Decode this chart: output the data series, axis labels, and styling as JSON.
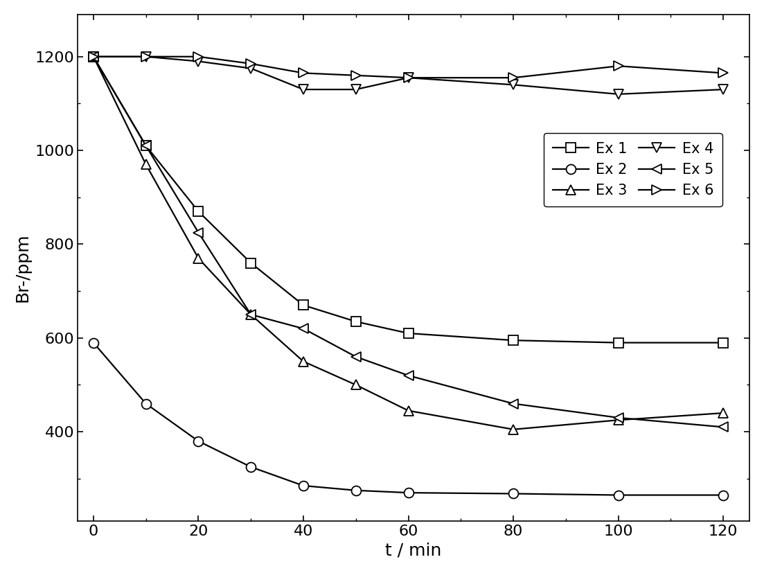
{
  "x": [
    0,
    10,
    20,
    30,
    40,
    50,
    60,
    80,
    100,
    120
  ],
  "ex1": [
    1200,
    1010,
    870,
    760,
    670,
    635,
    610,
    595,
    590,
    590
  ],
  "ex2": [
    590,
    460,
    380,
    325,
    285,
    275,
    270,
    268,
    265,
    265
  ],
  "ex3": [
    1200,
    970,
    770,
    650,
    550,
    500,
    445,
    405,
    425,
    440
  ],
  "ex4": [
    1200,
    1200,
    1190,
    1175,
    1130,
    1130,
    1155,
    1140,
    1120,
    1130
  ],
  "ex5": [
    1200,
    1010,
    825,
    650,
    620,
    560,
    520,
    460,
    430,
    410
  ],
  "ex6": [
    1200,
    1200,
    1200,
    1185,
    1165,
    1160,
    1155,
    1155,
    1180,
    1165
  ],
  "xlabel": "t / min",
  "ylabel": "Br-/ppm",
  "xlim": [
    -3,
    125
  ],
  "ylim": [
    210,
    1290
  ],
  "yticks": [
    400,
    600,
    800,
    1000,
    1200
  ],
  "xticks": [
    0,
    20,
    40,
    60,
    80,
    100,
    120
  ],
  "line_color": "#000000",
  "marker_facecolor": "#ffffff",
  "marker_size": 10,
  "linewidth": 1.6,
  "legend_labels": [
    "Ex 1",
    "Ex 2",
    "Ex 3",
    "Ex 4",
    "Ex 5",
    "Ex 6"
  ],
  "markers": [
    "s",
    "o",
    "^",
    "v",
    "<",
    ">"
  ],
  "xlabel_fontsize": 18,
  "ylabel_fontsize": 18,
  "tick_fontsize": 16,
  "legend_fontsize": 15
}
